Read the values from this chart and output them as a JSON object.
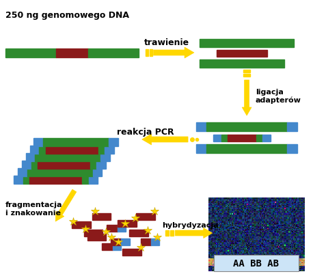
{
  "title": "250 ng genomowego DNA",
  "step1_label": "trawienie",
  "step2_label": "ligacja\nadapterów",
  "step3_label": "reakcja PCR",
  "step4_label": "fragmentacja\ni znakowanie",
  "step5_label": "hybrydyzacja",
  "microarray_label": "AA BB AB",
  "green_color": "#2e8b2e",
  "red_color": "#8b1a1a",
  "blue_color": "#4488cc",
  "yellow_color": "#ffd700",
  "dark_yellow": "#ccaa00",
  "bg_color": "#ffffff"
}
